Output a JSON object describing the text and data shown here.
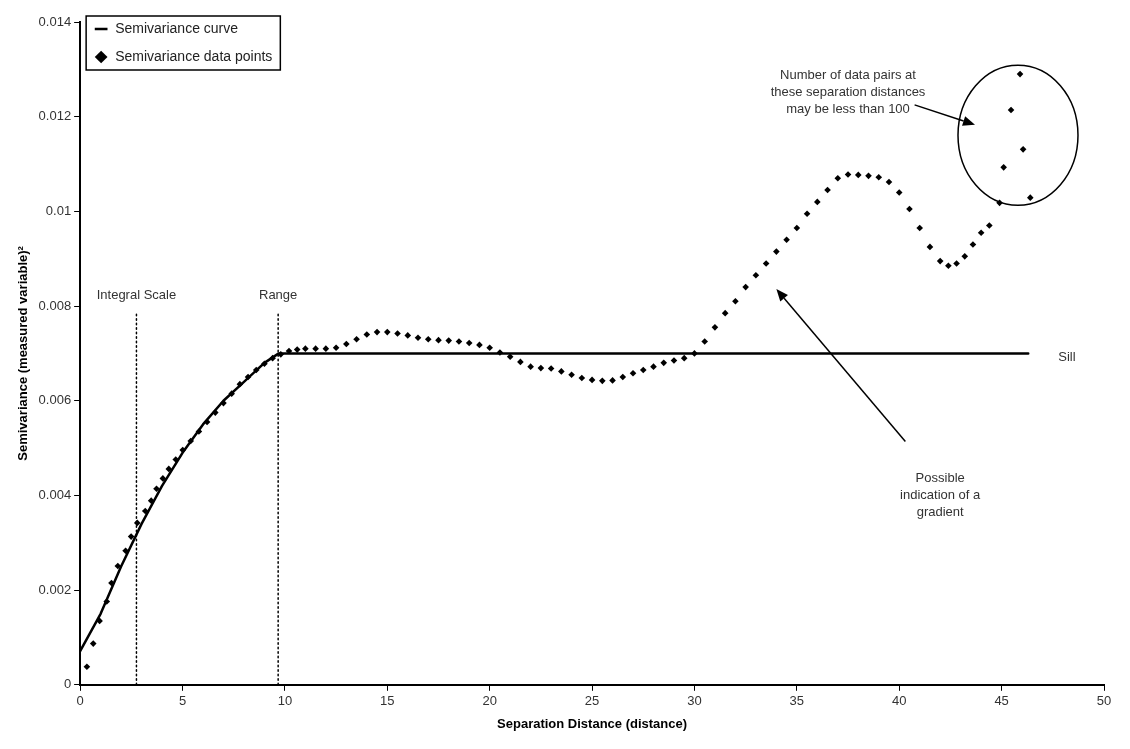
{
  "chart_data": {
    "type": "scatter",
    "xlabel": "Separation Distance (distance)",
    "ylabel": "Semivariance (measured variable)²",
    "xlim": [
      0,
      50
    ],
    "xticks": [
      0,
      5,
      10,
      15,
      20,
      25,
      30,
      35,
      40,
      45,
      50
    ],
    "ylim": [
      0,
      0.014
    ],
    "yticks": [
      0,
      0.002,
      0.004,
      0.006,
      0.008,
      0.01,
      0.012,
      0.014
    ],
    "legend": "top left",
    "marker": "diamond",
    "series": [
      {
        "name": "Semivariance curve",
        "type": "line",
        "marker": "none",
        "line_style": "solid",
        "color": "#000000",
        "x": [
          0,
          1,
          2,
          3,
          4,
          5,
          6,
          7,
          8,
          9,
          9.7,
          46.3
        ],
        "values": [
          0.00071,
          0.0015,
          0.0025,
          0.0034,
          0.0042,
          0.0049,
          0.0055,
          0.006,
          0.0064,
          0.0068,
          0.007,
          0.007
        ]
      },
      {
        "name": "Semivariance data points",
        "color": "#000000",
        "x": [
          0.33,
          0.64,
          0.95,
          1.3,
          1.53,
          1.84,
          2.22,
          2.49,
          2.79,
          3.18,
          3.47,
          3.73,
          4.04,
          4.33,
          4.67,
          5.01,
          5.4,
          5.8,
          6.2,
          6.6,
          7,
          7.4,
          7.8,
          8.2,
          8.6,
          9,
          9.4,
          9.8,
          10.2,
          10.6,
          11,
          11.5,
          12,
          12.5,
          13,
          13.5,
          14,
          14.5,
          15,
          15.5,
          16,
          16.5,
          17,
          17.5,
          18,
          18.5,
          19,
          19.5,
          20,
          20.5,
          21,
          21.5,
          22,
          22.5,
          23,
          23.5,
          24,
          24.5,
          25,
          25.5,
          26,
          26.5,
          27,
          27.5,
          28,
          28.5,
          29,
          29.5,
          30,
          30.5,
          31,
          31.5,
          32,
          32.5,
          33,
          33.5,
          34,
          34.5,
          35,
          35.5,
          36,
          36.5,
          37,
          37.5,
          38,
          38.5,
          39,
          39.5,
          40,
          40.5,
          41,
          41.5,
          42,
          42.4,
          42.8,
          43.2,
          43.6,
          44,
          44.4,
          44.9,
          45.1,
          45.46,
          46.05,
          46.4,
          45.9
        ],
        "values": [
          0.00038,
          0.00087,
          0.00135,
          0.00176,
          0.00215,
          0.00251,
          0.00283,
          0.00313,
          0.00342,
          0.00367,
          0.00389,
          0.00414,
          0.00436,
          0.00456,
          0.00476,
          0.00496,
          0.00515,
          0.00535,
          0.00555,
          0.00575,
          0.00595,
          0.00615,
          0.00635,
          0.0065,
          0.00665,
          0.00678,
          0.0069,
          0.00698,
          0.00705,
          0.00708,
          0.0071,
          0.0071,
          0.0071,
          0.00712,
          0.0072,
          0.0073,
          0.0074,
          0.00745,
          0.00745,
          0.00742,
          0.00738,
          0.00733,
          0.0073,
          0.00728,
          0.00727,
          0.00725,
          0.00722,
          0.00718,
          0.00712,
          0.00702,
          0.00693,
          0.00682,
          0.00672,
          0.00669,
          0.00668,
          0.00662,
          0.00655,
          0.00648,
          0.00644,
          0.00642,
          0.00643,
          0.0065,
          0.00658,
          0.00665,
          0.00672,
          0.0068,
          0.00685,
          0.0069,
          0.007,
          0.00725,
          0.00755,
          0.00785,
          0.0081,
          0.0084,
          0.00865,
          0.0089,
          0.00915,
          0.0094,
          0.00965,
          0.00995,
          0.0102,
          0.01045,
          0.0107,
          0.01078,
          0.01077,
          0.01075,
          0.01072,
          0.01062,
          0.0104,
          0.01005,
          0.00965,
          0.00925,
          0.00895,
          0.00885,
          0.0089,
          0.00905,
          0.0093,
          0.00955,
          0.0097,
          0.01018,
          0.01093,
          0.01214,
          0.01131,
          0.01029,
          0.0129
        ]
      }
    ],
    "ref_lines": [
      {
        "axis": "x",
        "value": 2.75,
        "label": "Integral Scale",
        "line_style": "dotted"
      },
      {
        "axis": "x",
        "value": 9.67,
        "label": "Range",
        "line_style": "dotted"
      }
    ],
    "annotations": [
      "Number of data pairs at these separation distances may be less than 100",
      "Possible indication of a gradient",
      {
        "text": "Sill",
        "x": 46.3,
        "y": 0.007
      }
    ]
  }
}
